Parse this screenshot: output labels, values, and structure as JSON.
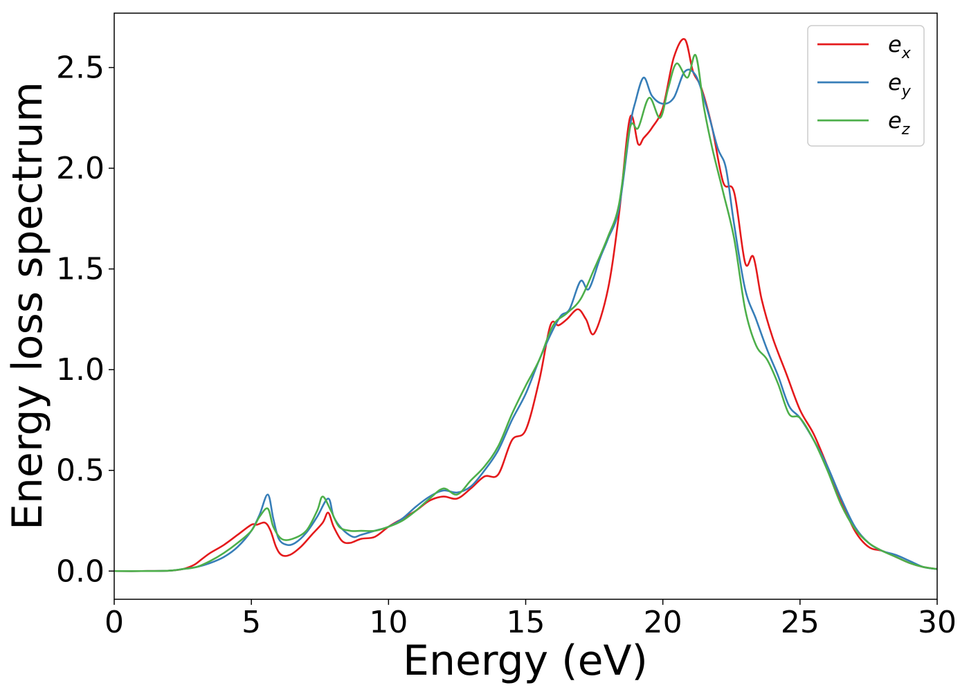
{
  "chart_data": {
    "type": "line",
    "xlabel": "Energy (eV)",
    "ylabel": "Energy loss spectrum",
    "xlim": [
      0,
      30
    ],
    "ylim": [
      -0.14,
      2.77
    ],
    "xticks": [
      0,
      5,
      10,
      15,
      20,
      25,
      30
    ],
    "xtick_labels": [
      "0",
      "5",
      "10",
      "15",
      "20",
      "25",
      "30"
    ],
    "yticks": [
      0.0,
      0.5,
      1.0,
      1.5,
      2.0,
      2.5
    ],
    "ytick_labels": [
      "0.0",
      "0.5",
      "1.0",
      "1.5",
      "2.0",
      "2.5"
    ],
    "grid": false,
    "legend_position": "top-right",
    "series": [
      {
        "name": "e",
        "subscript": "x",
        "color": "#e41a1c",
        "x": [
          0,
          1,
          2,
          2.5,
          2.9,
          3.2,
          3.5,
          4.0,
          4.5,
          5.0,
          5.2,
          5.5,
          5.7,
          5.9,
          6.1,
          6.4,
          6.8,
          7.2,
          7.6,
          7.8,
          8.0,
          8.3,
          8.6,
          9.0,
          9.5,
          10.0,
          10.5,
          11.0,
          11.5,
          12.0,
          12.5,
          13.0,
          13.5,
          14.0,
          14.5,
          15.0,
          15.5,
          15.9,
          16.2,
          16.5,
          16.9,
          17.2,
          17.5,
          18.0,
          18.4,
          18.8,
          19.1,
          19.3,
          19.6,
          20.0,
          20.4,
          20.8,
          21.1,
          21.4,
          21.8,
          22.2,
          22.6,
          23.0,
          23.3,
          23.6,
          24.0,
          24.5,
          25.0,
          25.5,
          26.0,
          26.5,
          27.0,
          27.5,
          28.0,
          28.5,
          29.0,
          29.5,
          30.0
        ],
        "values": [
          0.0,
          0.0,
          0.002,
          0.01,
          0.03,
          0.06,
          0.09,
          0.13,
          0.18,
          0.23,
          0.23,
          0.24,
          0.2,
          0.12,
          0.08,
          0.08,
          0.12,
          0.18,
          0.24,
          0.29,
          0.22,
          0.15,
          0.14,
          0.16,
          0.17,
          0.22,
          0.26,
          0.3,
          0.35,
          0.37,
          0.36,
          0.41,
          0.47,
          0.48,
          0.65,
          0.7,
          0.95,
          1.22,
          1.22,
          1.25,
          1.3,
          1.25,
          1.18,
          1.4,
          1.77,
          2.25,
          2.12,
          2.15,
          2.2,
          2.3,
          2.55,
          2.64,
          2.48,
          2.4,
          2.2,
          1.93,
          1.88,
          1.53,
          1.56,
          1.35,
          1.16,
          0.98,
          0.8,
          0.68,
          0.52,
          0.35,
          0.2,
          0.12,
          0.1,
          0.07,
          0.04,
          0.02,
          0.01
        ]
      },
      {
        "name": "e",
        "subscript": "y",
        "color": "#377eb8",
        "x": [
          0,
          1,
          2,
          2.5,
          3.0,
          3.5,
          4.0,
          4.5,
          5.0,
          5.3,
          5.6,
          5.8,
          6.0,
          6.3,
          6.6,
          7.0,
          7.4,
          7.8,
          8.0,
          8.3,
          8.7,
          9.0,
          9.5,
          10.0,
          10.5,
          11.0,
          11.5,
          12.0,
          12.5,
          13.0,
          13.5,
          14.0,
          14.5,
          15.0,
          15.5,
          16.0,
          16.3,
          16.6,
          17.0,
          17.3,
          17.7,
          18.0,
          18.4,
          18.8,
          19.0,
          19.3,
          19.6,
          20.0,
          20.4,
          20.8,
          21.2,
          21.6,
          22.0,
          22.3,
          22.6,
          23.0,
          23.4,
          23.8,
          24.2,
          24.6,
          25.0,
          25.5,
          26.0,
          26.5,
          27.0,
          27.5,
          28.0,
          28.5,
          29.0,
          29.5,
          30.0
        ],
        "values": [
          0.0,
          0.0,
          0.002,
          0.01,
          0.02,
          0.04,
          0.07,
          0.12,
          0.2,
          0.28,
          0.38,
          0.26,
          0.16,
          0.13,
          0.14,
          0.19,
          0.27,
          0.36,
          0.27,
          0.21,
          0.17,
          0.18,
          0.2,
          0.22,
          0.26,
          0.32,
          0.37,
          0.4,
          0.39,
          0.42,
          0.5,
          0.6,
          0.75,
          0.88,
          1.05,
          1.2,
          1.27,
          1.3,
          1.44,
          1.4,
          1.55,
          1.65,
          1.8,
          2.2,
          2.33,
          2.45,
          2.36,
          2.32,
          2.35,
          2.48,
          2.46,
          2.3,
          2.1,
          2.0,
          1.72,
          1.4,
          1.25,
          1.1,
          0.97,
          0.82,
          0.76,
          0.65,
          0.52,
          0.36,
          0.22,
          0.14,
          0.1,
          0.08,
          0.05,
          0.02,
          0.01
        ]
      },
      {
        "name": "e",
        "subscript": "z",
        "color": "#4daf4a",
        "x": [
          0,
          1,
          2,
          2.5,
          3.0,
          3.5,
          4.0,
          4.5,
          5.0,
          5.3,
          5.6,
          5.8,
          6.1,
          6.5,
          7.0,
          7.4,
          7.6,
          7.9,
          8.2,
          8.6,
          9.0,
          9.5,
          10.0,
          10.5,
          11.0,
          11.5,
          12.0,
          12.5,
          13.0,
          13.5,
          14.0,
          14.5,
          15.0,
          15.5,
          16.0,
          16.5,
          17.0,
          17.5,
          18.0,
          18.4,
          18.8,
          19.1,
          19.5,
          19.9,
          20.2,
          20.5,
          20.9,
          21.2,
          21.5,
          21.8,
          22.2,
          22.6,
          23.0,
          23.4,
          23.8,
          24.2,
          24.6,
          25.0,
          25.5,
          26.0,
          26.5,
          27.0,
          27.5,
          28.0,
          28.5,
          29.0,
          29.5,
          30.0
        ],
        "values": [
          0.0,
          0.0,
          0.002,
          0.01,
          0.02,
          0.05,
          0.09,
          0.14,
          0.2,
          0.27,
          0.31,
          0.22,
          0.16,
          0.16,
          0.2,
          0.3,
          0.37,
          0.3,
          0.22,
          0.2,
          0.2,
          0.2,
          0.22,
          0.25,
          0.3,
          0.36,
          0.41,
          0.38,
          0.45,
          0.52,
          0.62,
          0.78,
          0.92,
          1.05,
          1.22,
          1.28,
          1.35,
          1.5,
          1.66,
          1.82,
          2.2,
          2.2,
          2.35,
          2.25,
          2.4,
          2.52,
          2.45,
          2.56,
          2.3,
          2.1,
          1.88,
          1.65,
          1.3,
          1.12,
          1.05,
          0.93,
          0.78,
          0.76,
          0.65,
          0.5,
          0.33,
          0.21,
          0.14,
          0.1,
          0.07,
          0.04,
          0.02,
          0.01
        ]
      }
    ]
  }
}
